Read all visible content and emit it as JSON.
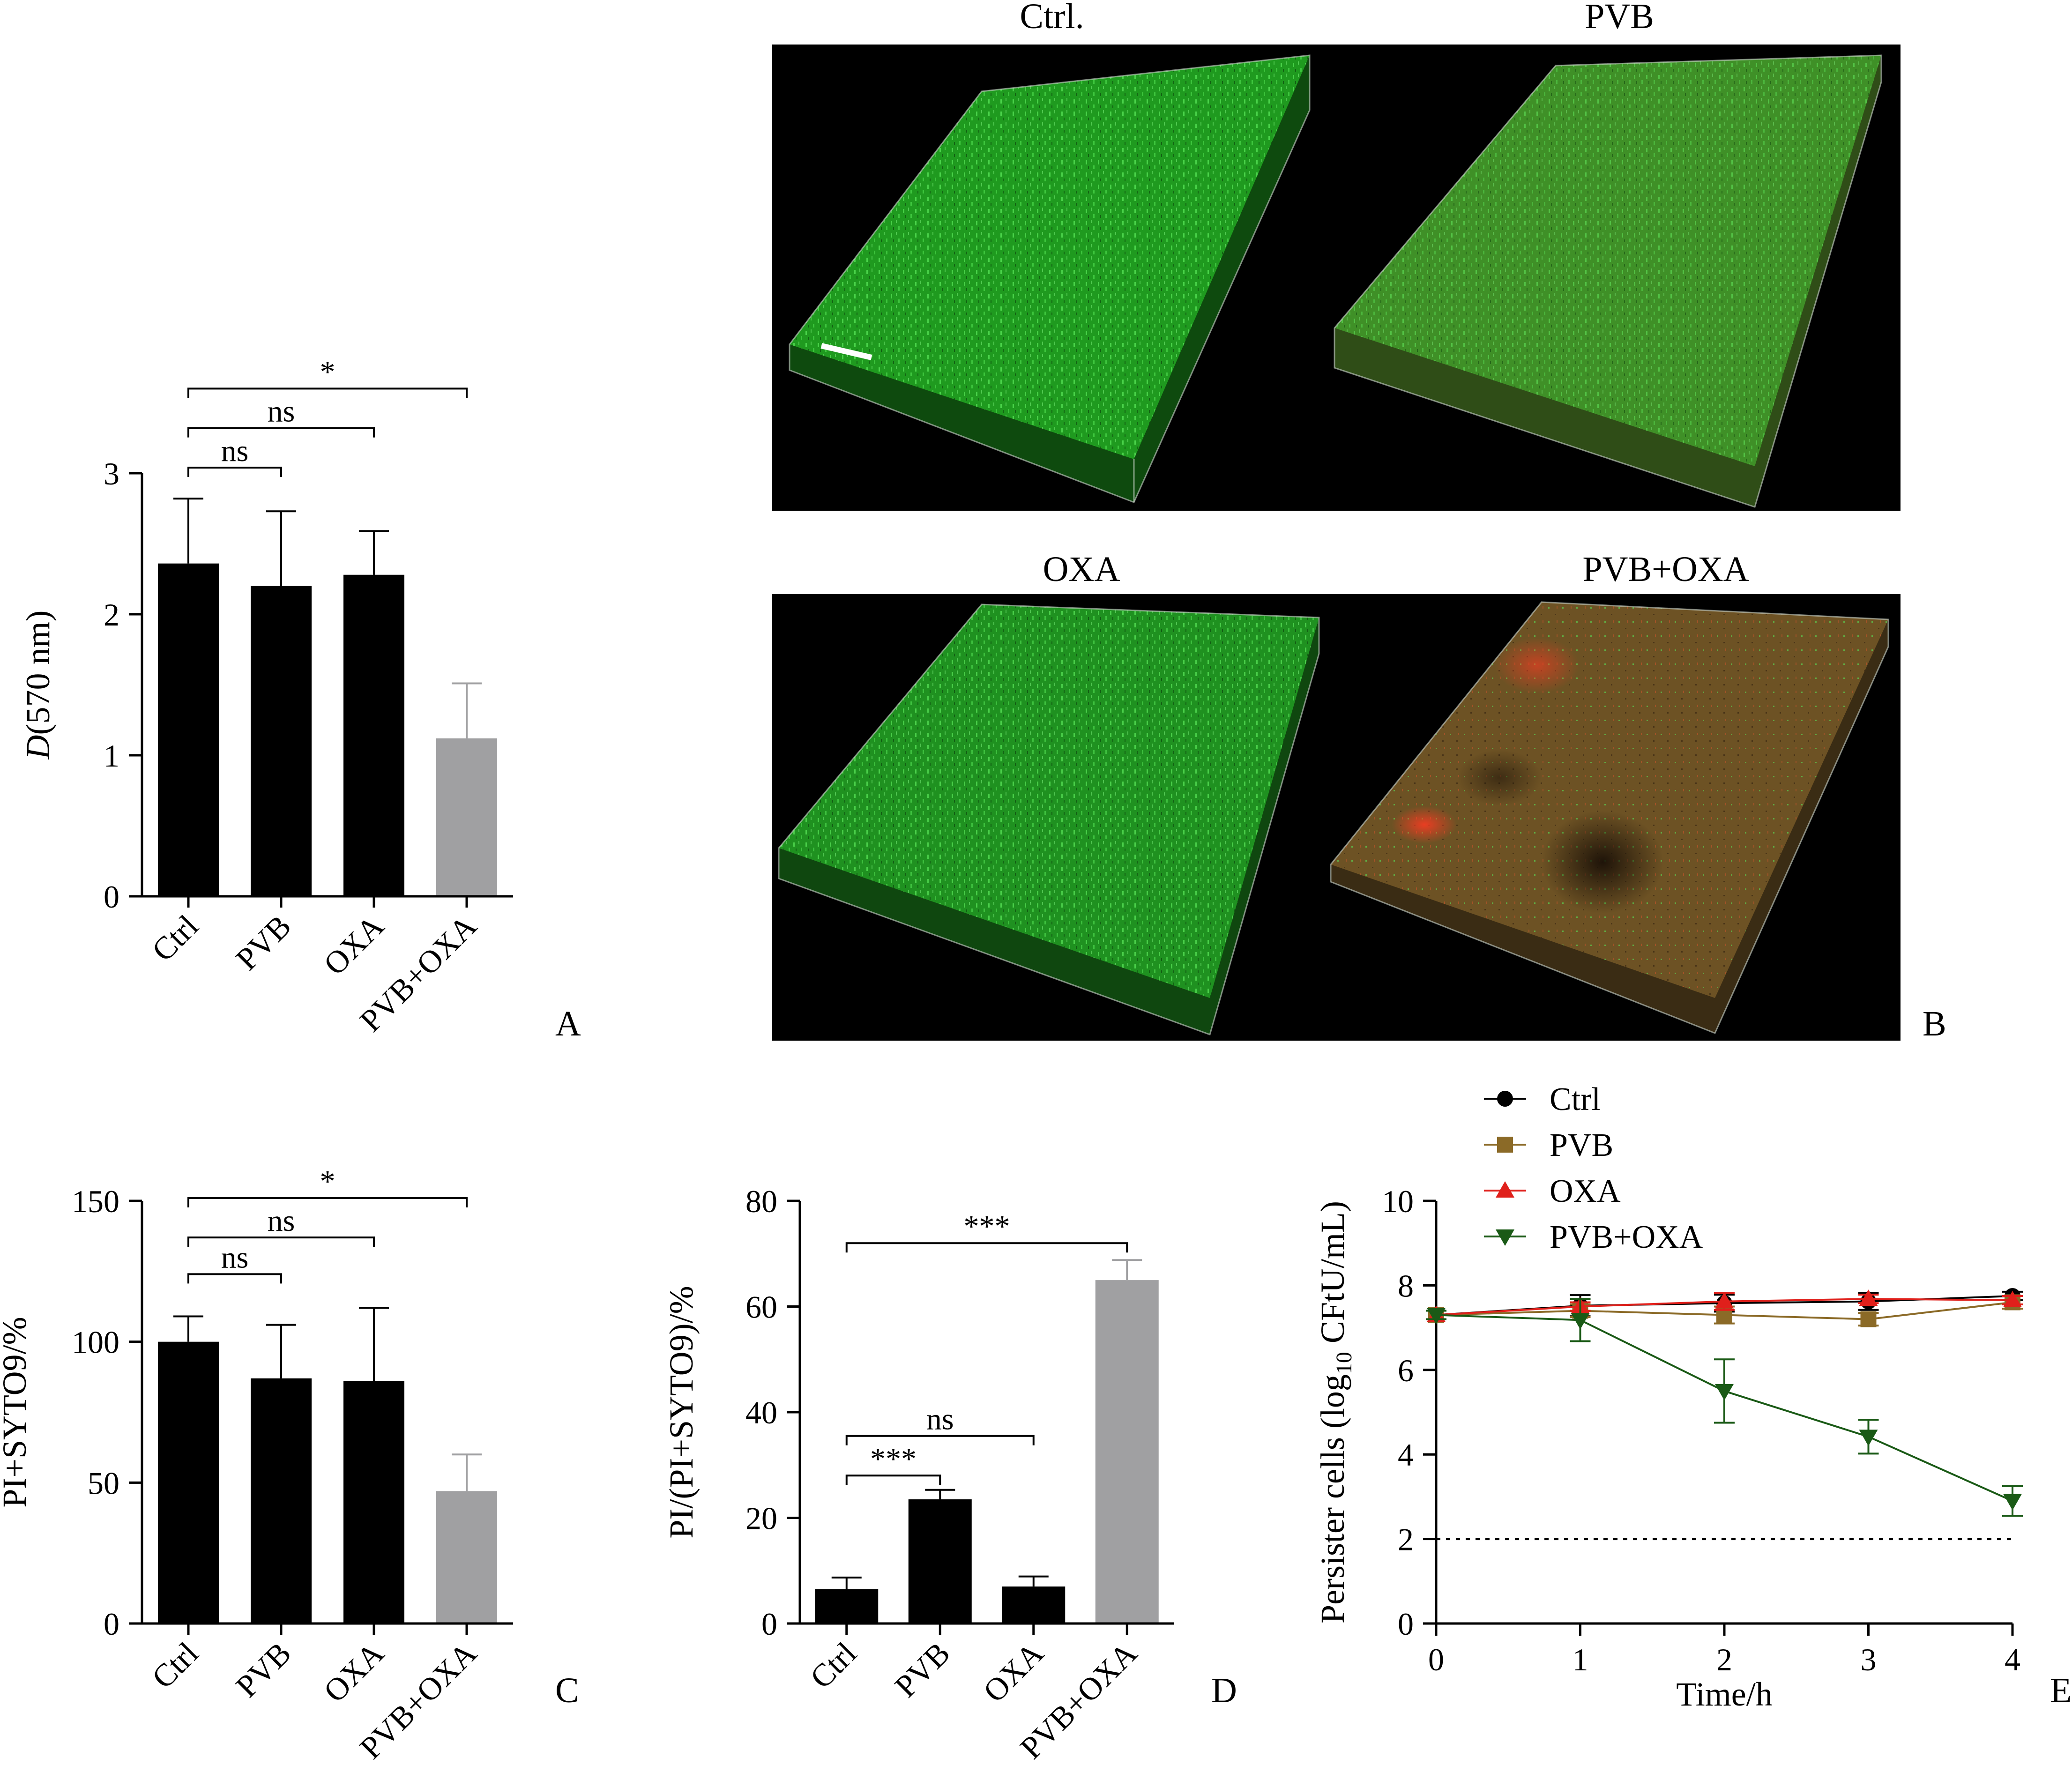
{
  "panels": {
    "A": "A",
    "B": "B",
    "C": "C",
    "D": "D",
    "E": "E"
  },
  "micrographs": {
    "titles": [
      "Ctrl.",
      "PVB",
      "OXA",
      "PVB+OXA"
    ]
  },
  "chart_data": [
    {
      "id": "A",
      "type": "bar",
      "categories": [
        "Ctrl",
        "PVB",
        "OXA",
        "PVB+OXA"
      ],
      "values": [
        2.36,
        2.2,
        2.28,
        1.12
      ],
      "errors": [
        0.46,
        0.53,
        0.31,
        0.39
      ],
      "bar_colors": [
        "#000000",
        "#000000",
        "#000000",
        "#a0a0a2"
      ],
      "ylabel": "D(570 nm)",
      "ylabel_italic": "D",
      "ylabel_rest": "(570 nm)",
      "ylim": [
        0,
        3
      ],
      "yticks": [
        0,
        1,
        2,
        3
      ],
      "significance": [
        {
          "from": 0,
          "to": 1,
          "label": "ns",
          "level": 3.04
        },
        {
          "from": 0,
          "to": 2,
          "label": "ns",
          "level": 3.32
        },
        {
          "from": 0,
          "to": 3,
          "label": "*",
          "level": 3.6
        }
      ]
    },
    {
      "id": "C",
      "type": "bar",
      "categories": [
        "Ctrl",
        "PVB",
        "OXA",
        "PVB+OXA"
      ],
      "values": [
        100,
        87,
        86,
        47
      ],
      "errors": [
        9,
        19,
        26,
        13
      ],
      "bar_colors": [
        "#000000",
        "#000000",
        "#000000",
        "#a0a0a2"
      ],
      "ylabel": "PI+SYTO9/%",
      "ylim": [
        0,
        150
      ],
      "yticks": [
        0,
        50,
        100,
        150
      ],
      "significance": [
        {
          "from": 0,
          "to": 1,
          "label": "ns",
          "level": 124
        },
        {
          "from": 0,
          "to": 2,
          "label": "ns",
          "level": 137
        },
        {
          "from": 0,
          "to": 3,
          "label": "*",
          "level": 151
        }
      ]
    },
    {
      "id": "D",
      "type": "bar",
      "categories": [
        "Ctrl",
        "PVB",
        "OXA",
        "PVB+OXA"
      ],
      "values": [
        6.5,
        23.5,
        7,
        65
      ],
      "errors": [
        2.2,
        1.8,
        1.9,
        3.8
      ],
      "bar_colors": [
        "#000000",
        "#000000",
        "#000000",
        "#a0a0a2"
      ],
      "ylabel": "PI/(PI+SYTO9)/%",
      "ylim": [
        0,
        80
      ],
      "yticks": [
        0,
        20,
        40,
        60,
        80
      ],
      "significance": [
        {
          "from": 0,
          "to": 1,
          "label": "***",
          "level": 28
        },
        {
          "from": 0,
          "to": 2,
          "label": "ns",
          "level": 35.5
        },
        {
          "from": 0,
          "to": 3,
          "label": "***",
          "level": 72
        }
      ]
    },
    {
      "id": "E",
      "type": "line",
      "x": [
        0,
        1,
        2,
        3,
        4
      ],
      "xlabel": "Time/h",
      "ylabel_prefix": "Persister cells (log",
      "ylabel_sub": "10",
      "ylabel_suffix": " CFtU/mL)",
      "xlim": [
        0,
        4
      ],
      "ylim": [
        0,
        10
      ],
      "xticks": [
        0,
        1,
        2,
        3,
        4
      ],
      "yticks": [
        0,
        2,
        4,
        6,
        8,
        10
      ],
      "detection_limit": 2,
      "series": [
        {
          "name": "Ctrl",
          "values": [
            7.3,
            7.52,
            7.58,
            7.62,
            7.75
          ],
          "errors": [
            0.1,
            0.25,
            0.2,
            0.2,
            0.1
          ],
          "color": "#000000",
          "marker": "circle"
        },
        {
          "name": "PVB",
          "values": [
            7.3,
            7.4,
            7.3,
            7.2,
            7.6
          ],
          "errors": [
            0.1,
            0.15,
            0.2,
            0.15,
            0.15
          ],
          "color": "#8b6a27",
          "marker": "square"
        },
        {
          "name": "OXA",
          "values": [
            7.3,
            7.5,
            7.62,
            7.68,
            7.65
          ],
          "errors": [
            0.1,
            0.1,
            0.2,
            0.1,
            0.1
          ],
          "color": "#e0201b",
          "marker": "triangle-up"
        },
        {
          "name": "PVB+OXA",
          "values": [
            7.3,
            7.18,
            5.5,
            4.42,
            2.9
          ],
          "errors": [
            0.1,
            0.5,
            0.75,
            0.4,
            0.35
          ],
          "color": "#1a5a16",
          "marker": "triangle-down"
        }
      ]
    }
  ]
}
